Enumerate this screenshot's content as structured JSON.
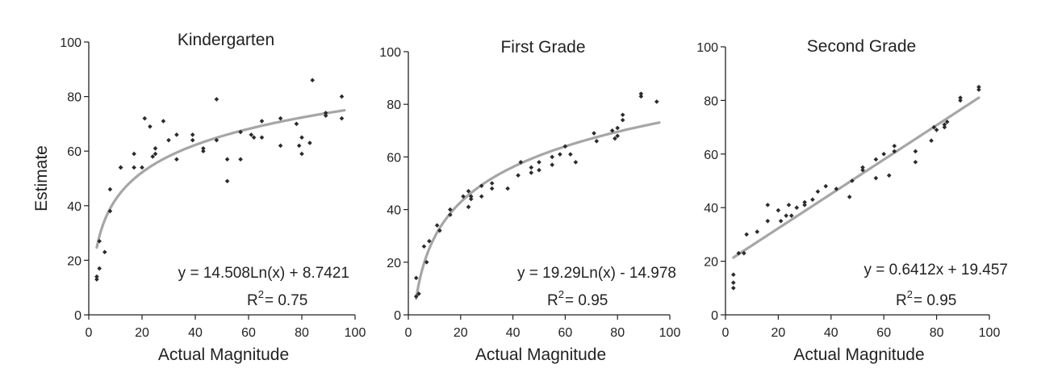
{
  "chart_data": [
    {
      "type": "scatter",
      "title": "Kindergarten",
      "xlabel": "Actual Magnitude",
      "ylabel": "Estimate",
      "xlim": [
        0,
        100
      ],
      "ylim": [
        0,
        100
      ],
      "xticks": [
        "0",
        "20",
        "40",
        "60",
        "80",
        "100"
      ],
      "yticks": [
        "0",
        "20",
        "40",
        "60",
        "80",
        "100"
      ],
      "grid": false,
      "equation": "y = 14.508Ln(x) + 8.7421",
      "r2_base": "R",
      "r2_sup": "2",
      "r2_rest": "= 0.75",
      "trend": {
        "kind": "log",
        "a": 14.508,
        "b": 8.7421,
        "x_range": [
          3,
          96
        ]
      },
      "colors": {
        "points": "#2b2b2b",
        "trend": "#a6a6a6",
        "axis": "#222222"
      },
      "points": [
        [
          3,
          14
        ],
        [
          3,
          13
        ],
        [
          4,
          27
        ],
        [
          4,
          17
        ],
        [
          6,
          23
        ],
        [
          8,
          46
        ],
        [
          8,
          38
        ],
        [
          12,
          54
        ],
        [
          12,
          54
        ],
        [
          17,
          59
        ],
        [
          17,
          54
        ],
        [
          20,
          54
        ],
        [
          21,
          72
        ],
        [
          23,
          69
        ],
        [
          24,
          58
        ],
        [
          25,
          61
        ],
        [
          25,
          59
        ],
        [
          28,
          71
        ],
        [
          30,
          64
        ],
        [
          33,
          66
        ],
        [
          33,
          57
        ],
        [
          39,
          66
        ],
        [
          39,
          64
        ],
        [
          43,
          60
        ],
        [
          43,
          61
        ],
        [
          48,
          79
        ],
        [
          48,
          64
        ],
        [
          52,
          49
        ],
        [
          52,
          57
        ],
        [
          57,
          57
        ],
        [
          57,
          67
        ],
        [
          61,
          66
        ],
        [
          62,
          65
        ],
        [
          65,
          71
        ],
        [
          65,
          65
        ],
        [
          72,
          72
        ],
        [
          72,
          62
        ],
        [
          78,
          70
        ],
        [
          79,
          62
        ],
        [
          80,
          65
        ],
        [
          80,
          59
        ],
        [
          83,
          63
        ],
        [
          84,
          86
        ],
        [
          89,
          73
        ],
        [
          89,
          74
        ],
        [
          95,
          80
        ],
        [
          95,
          72
        ]
      ]
    },
    {
      "type": "scatter",
      "title": "First Grade",
      "xlabel": "Actual Magnitude",
      "ylabel": "",
      "xlim": [
        0,
        100
      ],
      "ylim": [
        0,
        100
      ],
      "xticks": [
        "0",
        "20",
        "40",
        "60",
        "80",
        "100"
      ],
      "yticks": [
        "0",
        "20",
        "40",
        "60",
        "80",
        "100"
      ],
      "grid": false,
      "equation": "y = 19.29Ln(x) - 14.978",
      "r2_base": "R",
      "r2_sup": "2",
      "r2_rest": "= 0.95",
      "trend": {
        "kind": "log",
        "a": 19.29,
        "b": -14.978,
        "x_range": [
          3,
          96
        ]
      },
      "colors": {
        "points": "#2b2b2b",
        "trend": "#a6a6a6",
        "axis": "#222222"
      },
      "points": [
        [
          3,
          7
        ],
        [
          3,
          14
        ],
        [
          4,
          8
        ],
        [
          6,
          26
        ],
        [
          7,
          20
        ],
        [
          8,
          28
        ],
        [
          11,
          34
        ],
        [
          12,
          32
        ],
        [
          16,
          40
        ],
        [
          16,
          38
        ],
        [
          21,
          45
        ],
        [
          23,
          41
        ],
        [
          23,
          47
        ],
        [
          24,
          45
        ],
        [
          24,
          44
        ],
        [
          28,
          45
        ],
        [
          28,
          49
        ],
        [
          32,
          48
        ],
        [
          32,
          50
        ],
        [
          38,
          48
        ],
        [
          42,
          53
        ],
        [
          43,
          58
        ],
        [
          47,
          56
        ],
        [
          47,
          54
        ],
        [
          50,
          58
        ],
        [
          50,
          55
        ],
        [
          55,
          60
        ],
        [
          55,
          57
        ],
        [
          58,
          61
        ],
        [
          60,
          64
        ],
        [
          62,
          61
        ],
        [
          64,
          58
        ],
        [
          71,
          69
        ],
        [
          72,
          66
        ],
        [
          78,
          70
        ],
        [
          79,
          67
        ],
        [
          80,
          71
        ],
        [
          80,
          68
        ],
        [
          82,
          76
        ],
        [
          82,
          74
        ],
        [
          89,
          84
        ],
        [
          89,
          83
        ],
        [
          95,
          81
        ]
      ]
    },
    {
      "type": "scatter",
      "title": "Second Grade",
      "xlabel": "Actual Magnitude",
      "ylabel": "",
      "xlim": [
        0,
        100
      ],
      "ylim": [
        0,
        100
      ],
      "xticks": [
        "0",
        "20",
        "40",
        "60",
        "80",
        "100"
      ],
      "yticks": [
        "0",
        "20",
        "40",
        "60",
        "80",
        "100"
      ],
      "grid": false,
      "equation": "y = 0.6412x + 19.457",
      "r2_base": "R",
      "r2_sup": "2",
      "r2_rest": "= 0.95",
      "trend": {
        "kind": "linear",
        "m": 0.6412,
        "b": 19.457,
        "x_range": [
          3,
          96
        ]
      },
      "colors": {
        "points": "#2b2b2b",
        "trend": "#a6a6a6",
        "axis": "#222222"
      },
      "points": [
        [
          3,
          10
        ],
        [
          3,
          12
        ],
        [
          3,
          15
        ],
        [
          5,
          23
        ],
        [
          7,
          23
        ],
        [
          8,
          30
        ],
        [
          12,
          31
        ],
        [
          16,
          35
        ],
        [
          16,
          41
        ],
        [
          20,
          39
        ],
        [
          21,
          35
        ],
        [
          23,
          37
        ],
        [
          24,
          41
        ],
        [
          25,
          37
        ],
        [
          27,
          40
        ],
        [
          30,
          41
        ],
        [
          30,
          42
        ],
        [
          33,
          43
        ],
        [
          35,
          46
        ],
        [
          38,
          48
        ],
        [
          42,
          47
        ],
        [
          47,
          44
        ],
        [
          48,
          50
        ],
        [
          52,
          55
        ],
        [
          52,
          54
        ],
        [
          57,
          51
        ],
        [
          57,
          58
        ],
        [
          60,
          60
        ],
        [
          62,
          52
        ],
        [
          64,
          61
        ],
        [
          64,
          63
        ],
        [
          72,
          57
        ],
        [
          72,
          61
        ],
        [
          78,
          65
        ],
        [
          79,
          70
        ],
        [
          80,
          69
        ],
        [
          83,
          70
        ],
        [
          83,
          71
        ],
        [
          84,
          72
        ],
        [
          89,
          81
        ],
        [
          89,
          80
        ],
        [
          96,
          84
        ],
        [
          96,
          85
        ]
      ]
    }
  ]
}
